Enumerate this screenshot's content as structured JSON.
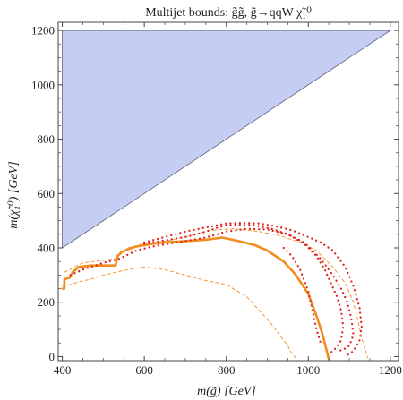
{
  "chart_data": {
    "type": "line",
    "title": "Multijet bounds: g̃g̃, g̃→qqW χ̃₁⁰",
    "xlabel": "m(g̃) [GeV]",
    "ylabel": "m(χ̃₁⁰) [GeV]",
    "xlim": [
      390,
      1220
    ],
    "ylim": [
      -15,
      1230
    ],
    "xticks": [
      400,
      600,
      800,
      1000,
      1200
    ],
    "yticks": [
      0,
      200,
      400,
      600,
      800,
      1000,
      1200
    ],
    "grid": false,
    "legend": "none",
    "excluded_region": {
      "vertices": [
        [
          400,
          1200
        ],
        [
          1200,
          1200
        ],
        [
          400,
          400
        ]
      ]
    },
    "series": [
      {
        "style": "solid",
        "color": "#f28c1c",
        "x": [
          400,
          405,
          405,
          418,
          425,
          440,
          470,
          500,
          530,
          535,
          545,
          560,
          580,
          600,
          620,
          650,
          700,
          750,
          790,
          800,
          830,
          870,
          900,
          940,
          970,
          1000,
          1020,
          1035,
          1045,
          1050
        ],
        "y": [
          250,
          250,
          285,
          290,
          310,
          330,
          335,
          335,
          335,
          370,
          385,
          395,
          405,
          410,
          415,
          420,
          425,
          430,
          438,
          435,
          425,
          410,
          390,
          350,
          300,
          230,
          150,
          80,
          20,
          -10
        ]
      },
      {
        "style": "dashed",
        "color": "#f28c1c",
        "x": [
          405,
          430,
          450,
          530,
          560,
          600,
          650,
          700,
          760,
          820,
          880,
          930,
          980,
          1020,
          1060,
          1090,
          1110,
          1120,
          1130,
          1140,
          1145
        ],
        "y": [
          310,
          330,
          345,
          360,
          400,
          415,
          425,
          440,
          465,
          470,
          460,
          445,
          420,
          390,
          330,
          270,
          200,
          140,
          70,
          20,
          -5
        ]
      },
      {
        "style": "dashed",
        "color": "#f28c1c",
        "x": [
          400,
          420,
          440,
          470,
          500,
          530,
          560,
          600,
          650,
          700,
          750,
          800,
          850,
          880,
          910,
          930,
          950,
          960,
          970
        ],
        "y": [
          260,
          265,
          275,
          285,
          300,
          310,
          320,
          330,
          320,
          300,
          280,
          265,
          220,
          170,
          120,
          80,
          40,
          10,
          -5
        ]
      },
      {
        "style": "dotted",
        "color": "#e0201a",
        "x": [
          420,
          450,
          500,
          540,
          580,
          620,
          660,
          700,
          750,
          800,
          850,
          900,
          950,
          990,
          1030,
          1060,
          1080,
          1095,
          1105,
          1110,
          1100,
          1085,
          1070
        ],
        "y": [
          300,
          320,
          345,
          360,
          390,
          405,
          415,
          425,
          438,
          460,
          470,
          468,
          450,
          420,
          360,
          300,
          250,
          200,
          140,
          80,
          40,
          25,
          20
        ]
      },
      {
        "style": "dotted",
        "color": "#e0201a",
        "x": [
          600,
          640,
          700,
          740,
          780,
          800,
          830,
          870,
          910,
          950,
          990,
          1020,
          1040,
          1055,
          1070,
          1080,
          1085,
          1080,
          1070,
          1055
        ],
        "y": [
          415,
          425,
          440,
          455,
          475,
          483,
          485,
          483,
          470,
          450,
          415,
          370,
          320,
          270,
          220,
          170,
          110,
          60,
          35,
          15
        ]
      },
      {
        "style": "dotted",
        "color": "#e0201a",
        "x": [
          600,
          650,
          700,
          750,
          800,
          840,
          880,
          920,
          960,
          1000,
          1030,
          1060,
          1090,
          1110,
          1125,
          1130,
          1125,
          1110,
          1095
        ],
        "y": [
          420,
          440,
          460,
          475,
          490,
          492,
          490,
          480,
          465,
          440,
          420,
          390,
          330,
          260,
          180,
          110,
          60,
          20,
          5
        ]
      },
      {
        "style": "dotted",
        "color": "#e0201a",
        "x": [
          940,
          960,
          980,
          1000,
          1010,
          1020,
          1030
        ],
        "y": [
          400,
          370,
          320,
          240,
          170,
          100,
          50
        ]
      }
    ]
  }
}
